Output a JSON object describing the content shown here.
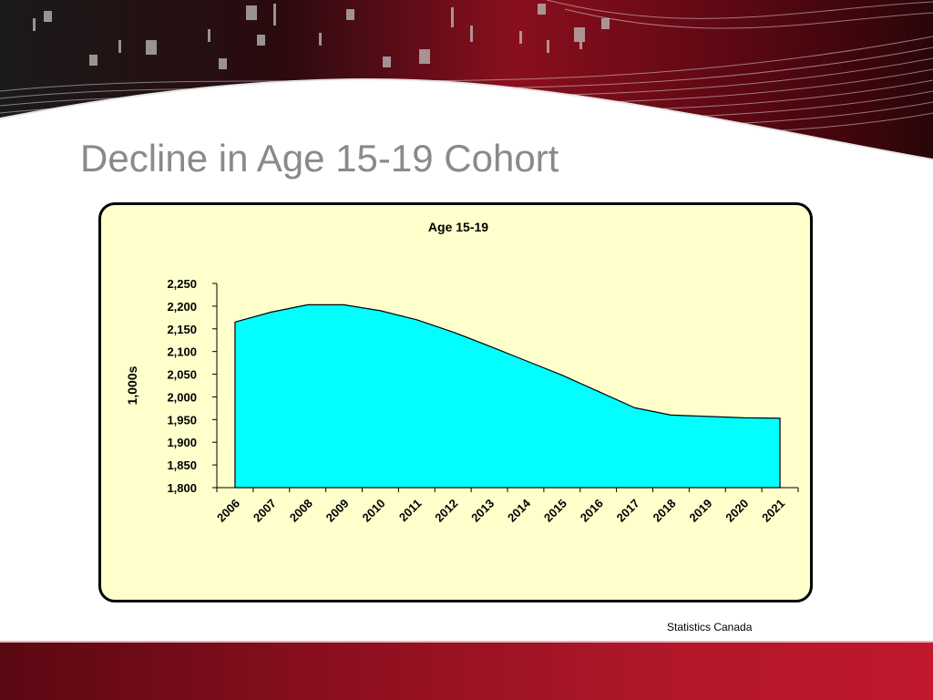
{
  "slide": {
    "title": "Decline in Age 15-19 Cohort",
    "source": "Statistics Canada"
  },
  "colors": {
    "title_text": "#8a8a8a",
    "chart_background": "#ffffcc",
    "area_fill": "#00ffff",
    "area_stroke": "#000000",
    "footer_band": "#b0172a",
    "header_dark": "#1a0a0c",
    "header_red": "#8a0f1e"
  },
  "chart_data": {
    "type": "area",
    "title": "Age 15-19",
    "xlabel": "",
    "ylabel": "1,000s",
    "categories": [
      "2006",
      "2007",
      "2008",
      "2009",
      "2010",
      "2011",
      "2012",
      "2013",
      "2014",
      "2015",
      "2016",
      "2017",
      "2018",
      "2019",
      "2020",
      "2021"
    ],
    "values": [
      2165,
      2187,
      2203,
      2203,
      2190,
      2170,
      2143,
      2112,
      2080,
      2048,
      2012,
      1976,
      1960,
      1957,
      1954,
      1953
    ],
    "ylim": [
      1800,
      2250
    ],
    "yticks": [
      "1,800",
      "1,850",
      "1,900",
      "1,950",
      "2,000",
      "2,050",
      "2,100",
      "2,150",
      "2,200",
      "2,250"
    ],
    "ytick_values": [
      1800,
      1850,
      1900,
      1950,
      2000,
      2050,
      2100,
      2150,
      2200,
      2250
    ],
    "grid": false,
    "legend": "none"
  }
}
